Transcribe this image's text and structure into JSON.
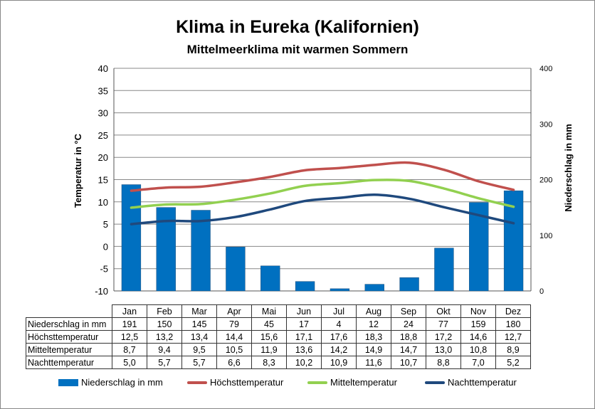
{
  "title": "Klima in Eureka (Kalifornien)",
  "subtitle": "Mittelmeerklima mit warmen Sommern",
  "colors": {
    "precip": "#0070c0",
    "high": "#c0504d",
    "mean": "#92d050",
    "low": "#1f497d"
  },
  "chart_data": {
    "type": "bar+line",
    "title": "Klima in Eureka (Kalifornien)",
    "subtitle": "Mittelmeerklima mit warmen Sommern",
    "categories": [
      "Jan",
      "Feb",
      "Mar",
      "Apr",
      "Mai",
      "Jun",
      "Jul",
      "Aug",
      "Sep",
      "Okt",
      "Nov",
      "Dez"
    ],
    "ylabel_left": "Temperatur in °C",
    "ylabel_right": "Niederschlag in mm",
    "ylim_left": [
      -10,
      40
    ],
    "ylim_right": [
      0,
      400
    ],
    "yticks_left": [
      "40",
      "35",
      "30",
      "25",
      "20",
      "15",
      "10",
      "5",
      "0",
      "-5",
      "-10"
    ],
    "yticks_right": [
      "400",
      "300",
      "200",
      "100",
      "0"
    ],
    "series": [
      {
        "name": "Niederschlag in mm",
        "type": "bar",
        "axis": "right",
        "values": [
          191,
          150,
          145,
          79,
          45,
          17,
          4,
          12,
          24,
          77,
          159,
          180
        ],
        "labels": [
          "191",
          "150",
          "145",
          "79",
          "45",
          "17",
          "4",
          "12",
          "24",
          "77",
          "159",
          "180"
        ]
      },
      {
        "name": "Höchsttemperatur",
        "type": "line",
        "axis": "left",
        "values": [
          12.5,
          13.2,
          13.4,
          14.4,
          15.6,
          17.1,
          17.6,
          18.3,
          18.8,
          17.2,
          14.6,
          12.7
        ],
        "labels": [
          "12,5",
          "13,2",
          "13,4",
          "14,4",
          "15,6",
          "17,1",
          "17,6",
          "18,3",
          "18,8",
          "17,2",
          "14,6",
          "12,7"
        ]
      },
      {
        "name": "Mitteltemperatur",
        "type": "line",
        "axis": "left",
        "values": [
          8.7,
          9.4,
          9.5,
          10.5,
          11.9,
          13.6,
          14.2,
          14.9,
          14.7,
          13.0,
          10.8,
          8.9
        ],
        "labels": [
          "8,7",
          "9,4",
          "9,5",
          "10,5",
          "11,9",
          "13,6",
          "14,2",
          "14,9",
          "14,7",
          "13,0",
          "10,8",
          "8,9"
        ]
      },
      {
        "name": "Nachttemperatur",
        "type": "line",
        "axis": "left",
        "values": [
          5.0,
          5.7,
          5.7,
          6.6,
          8.3,
          10.2,
          10.9,
          11.6,
          10.7,
          8.8,
          7.0,
          5.2
        ],
        "labels": [
          "5,0",
          "5,7",
          "5,7",
          "6,6",
          "8,3",
          "10,2",
          "10,9",
          "11,6",
          "10,7",
          "8,8",
          "7,0",
          "5,2"
        ]
      }
    ],
    "grid": true,
    "legend_position": "bottom"
  }
}
